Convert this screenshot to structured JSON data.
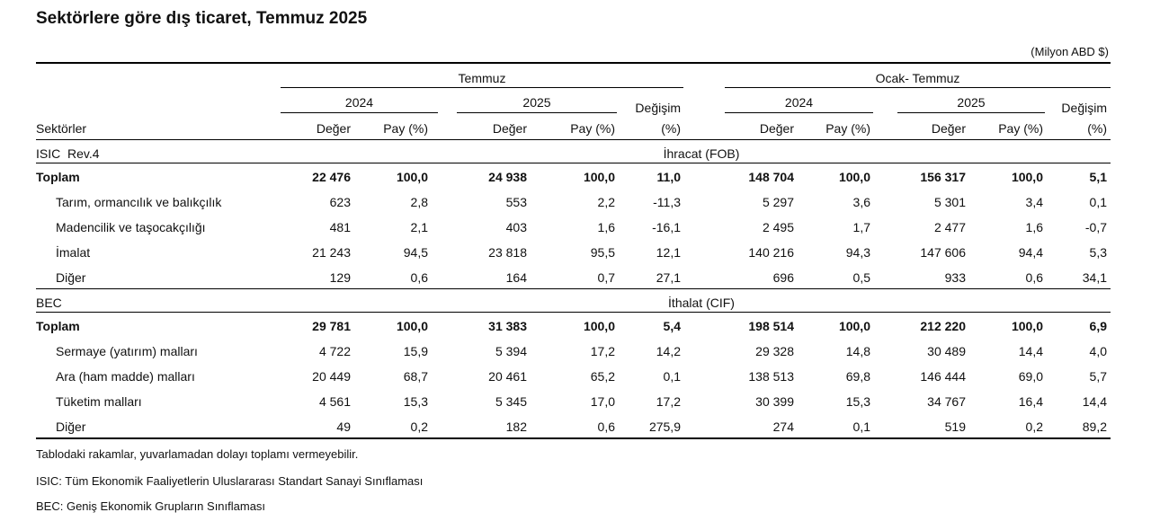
{
  "title": "Sektörlere göre dış ticaret, Temmuz 2025",
  "unit": "(Milyon ABD $)",
  "headers": {
    "period1": "Temmuz",
    "period2": "Ocak- Temmuz",
    "year1": "2024",
    "year2": "2025",
    "change_top": "Değişim",
    "change_bottom": "(%)",
    "value": "Değer",
    "share": "Pay (%)",
    "sectors": "Sektörler"
  },
  "sections": [
    {
      "code": "ISIC  Rev.4",
      "label": "İhracat (FOB)",
      "rows": [
        {
          "name": "Toplam",
          "total": true,
          "vals": [
            "22 476",
            "100,0",
            "24 938",
            "100,0",
            "11,0",
            "148 704",
            "100,0",
            "156 317",
            "100,0",
            "5,1"
          ]
        },
        {
          "name": "Tarım, ormancılık ve balıkçılık",
          "total": false,
          "vals": [
            "623",
            "2,8",
            "553",
            "2,2",
            "-11,3",
            "5 297",
            "3,6",
            "5 301",
            "3,4",
            "0,1"
          ]
        },
        {
          "name": "Madencilik ve taşocakçılığı",
          "total": false,
          "vals": [
            "481",
            "2,1",
            "403",
            "1,6",
            "-16,1",
            "2 495",
            "1,7",
            "2 477",
            "1,6",
            "-0,7"
          ]
        },
        {
          "name": "İmalat",
          "total": false,
          "vals": [
            "21 243",
            "94,5",
            "23 818",
            "95,5",
            "12,1",
            "140 216",
            "94,3",
            "147 606",
            "94,4",
            "5,3"
          ]
        },
        {
          "name": "Diğer",
          "total": false,
          "vals": [
            "129",
            "0,6",
            "164",
            "0,7",
            "27,1",
            "696",
            "0,5",
            "933",
            "0,6",
            "34,1"
          ]
        }
      ]
    },
    {
      "code": "BEC",
      "label": "İthalat (CIF)",
      "rows": [
        {
          "name": "Toplam",
          "total": true,
          "vals": [
            "29 781",
            "100,0",
            "31 383",
            "100,0",
            "5,4",
            "198 514",
            "100,0",
            "212 220",
            "100,0",
            "6,9"
          ]
        },
        {
          "name": "Sermaye (yatırım) malları",
          "total": false,
          "vals": [
            "4 722",
            "15,9",
            "5 394",
            "17,2",
            "14,2",
            "29 328",
            "14,8",
            "30 489",
            "14,4",
            "4,0"
          ]
        },
        {
          "name": "Ara (ham madde) malları",
          "total": false,
          "vals": [
            "20 449",
            "68,7",
            "20 461",
            "65,2",
            "0,1",
            "138 513",
            "69,8",
            "146 444",
            "69,0",
            "5,7"
          ]
        },
        {
          "name": "Tüketim malları",
          "total": false,
          "vals": [
            "4 561",
            "15,3",
            "5 345",
            "17,0",
            "17,2",
            "30 399",
            "15,3",
            "34 767",
            "16,4",
            "14,4"
          ]
        },
        {
          "name": "Diğer",
          "total": false,
          "vals": [
            "49",
            "0,2",
            "182",
            "0,6",
            "275,9",
            "274",
            "0,1",
            "519",
            "0,2",
            "89,2"
          ]
        }
      ]
    }
  ],
  "notes": [
    "Tablodaki rakamlar, yuvarlamadan dolayı toplamı vermeyebilir.",
    "ISIC: Tüm Ekonomik Faaliyetlerin Uluslararası Standart Sanayi Sınıflaması",
    "BEC: Geniş Ekonomik Grupların Sınıflaması"
  ]
}
